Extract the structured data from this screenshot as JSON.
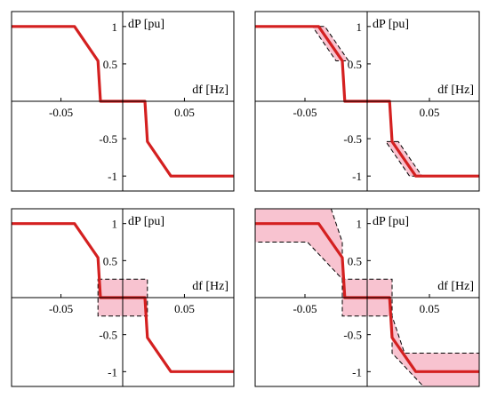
{
  "chart_data": [
    {
      "type": "line",
      "xlabel": "df [Hz]",
      "ylabel": "dP [pu]",
      "xlim": [
        -0.09,
        0.09
      ],
      "ylim": [
        -1.2,
        1.2
      ],
      "x_ticks": [
        -0.05,
        0.05
      ],
      "x_tick_labels": [
        "-0.05",
        "0.05"
      ],
      "y_ticks": [
        1,
        0.5,
        -0.5,
        -1
      ],
      "y_tick_labels": [
        "1",
        "0.5",
        "-0.5",
        "-1"
      ],
      "series": [
        {
          "color": "#d42020",
          "x": [
            -0.09,
            -0.039,
            -0.02,
            -0.018,
            0.018,
            0.02,
            0.039,
            0.09
          ],
          "y": [
            1,
            1,
            0.54,
            0,
            0,
            -0.54,
            -1,
            -1
          ]
        }
      ],
      "bands": []
    },
    {
      "type": "line",
      "xlabel": "df [Hz]",
      "ylabel": "dP [pu]",
      "xlim": [
        -0.09,
        0.09
      ],
      "ylim": [
        -1.2,
        1.2
      ],
      "x_ticks": [
        -0.05,
        0.05
      ],
      "x_tick_labels": [
        "-0.05",
        "0.05"
      ],
      "y_ticks": [
        1,
        0.5,
        -0.5,
        -1
      ],
      "y_tick_labels": [
        "1",
        "0.5",
        "-0.5",
        "-1"
      ],
      "series": [
        {
          "color": "#d42020",
          "x": [
            -0.09,
            -0.039,
            -0.02,
            -0.018,
            0.018,
            0.02,
            0.039,
            0.09
          ],
          "y": [
            1,
            1,
            0.54,
            0,
            0,
            -0.54,
            -1,
            -1
          ]
        }
      ],
      "bands": [
        {
          "x": [
            -0.044,
            -0.034,
            -0.015,
            -0.025
          ],
          "y": [
            1,
            1,
            0.54,
            0.54
          ]
        },
        {
          "x": [
            0.025,
            0.015,
            0.034,
            0.044
          ],
          "y": [
            -0.54,
            -0.54,
            -1,
            -1
          ]
        }
      ]
    },
    {
      "type": "line",
      "xlabel": "df [Hz]",
      "ylabel": "dP [pu]",
      "xlim": [
        -0.09,
        0.09
      ],
      "ylim": [
        -1.2,
        1.2
      ],
      "x_ticks": [
        -0.05,
        0.05
      ],
      "x_tick_labels": [
        "-0.05",
        "0.05"
      ],
      "y_ticks": [
        1,
        0.5,
        -0.5,
        -1
      ],
      "y_tick_labels": [
        "1",
        "0.5",
        "-0.5",
        "-1"
      ],
      "series": [
        {
          "color": "#d42020",
          "x": [
            -0.09,
            -0.039,
            -0.02,
            -0.018,
            0.018,
            0.02,
            0.039,
            0.09
          ],
          "y": [
            1,
            1,
            0.54,
            0,
            0,
            -0.54,
            -1,
            -1
          ]
        }
      ],
      "bands": [
        {
          "x": [
            -0.02,
            0.02,
            0.02,
            -0.02
          ],
          "y": [
            0.25,
            0.25,
            -0.25,
            -0.25
          ]
        }
      ]
    },
    {
      "type": "line",
      "xlabel": "df [Hz]",
      "ylabel": "dP [pu]",
      "xlim": [
        -0.09,
        0.09
      ],
      "ylim": [
        -1.2,
        1.2
      ],
      "x_ticks": [
        -0.05,
        0.05
      ],
      "x_tick_labels": [
        "-0.05",
        "0.05"
      ],
      "y_ticks": [
        1,
        0.5,
        -0.5,
        -1
      ],
      "y_tick_labels": [
        "1",
        "0.5",
        "-0.5",
        "-1"
      ],
      "series": [
        {
          "color": "#d42020",
          "x": [
            -0.09,
            -0.039,
            -0.02,
            -0.018,
            0.018,
            0.02,
            0.039,
            0.09
          ],
          "y": [
            1,
            1,
            0.54,
            0,
            0,
            -0.54,
            -1,
            -1
          ]
        }
      ],
      "bands": [
        {
          "x": [
            -0.09,
            -0.03,
            -0.02,
            -0.02,
            0.02,
            0.02,
            0.03,
            0.09,
            0.09,
            0.048,
            0.02,
            0.02,
            -0.02,
            -0.02,
            -0.048,
            -0.09
          ],
          "y": [
            1.25,
            1.25,
            0.75,
            0.25,
            0.25,
            -0.25,
            -0.75,
            -0.75,
            -1.25,
            -1.25,
            -0.75,
            -0.25,
            -0.25,
            0.25,
            0.75,
            0.75
          ]
        }
      ]
    }
  ]
}
